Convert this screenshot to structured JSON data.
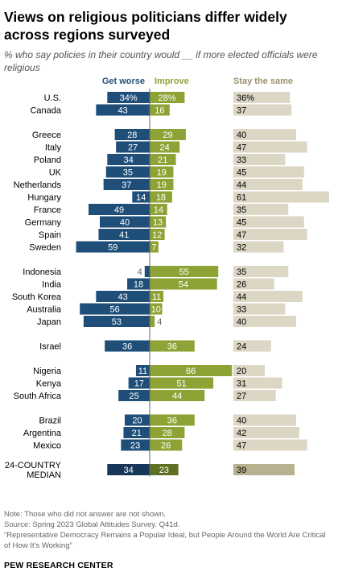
{
  "title": "Views on religious politicians differ widely across regions surveyed",
  "subtitle": "% who say policies in their country would __ if more elected officials were religious",
  "notes": [
    "Note: Those who did not answer are not shown.",
    "Source: Spring 2023 Global Attitudes Survey. Q41d.",
    "“Representative Democracy Remains a Popular Ideal, but People Around the World Are Critical of How It’s Working”"
  ],
  "source_org": "PEW RESEARCH CENTER",
  "colors": {
    "worse": "#1f4e79",
    "improve": "#8ea336",
    "same": "#dcd6c5",
    "worse_median": "#17375a",
    "improve_median": "#5f6f24",
    "same_median": "#b8b18f",
    "header_worse": "#1f4e79",
    "header_improve": "#8ea336",
    "header_same": "#9a9170"
  },
  "chart_data": {
    "type": "bar",
    "orientation": "horizontal-diverging",
    "series": [
      {
        "name": "Get worse",
        "key": "worse"
      },
      {
        "name": "Improve",
        "key": "improve"
      },
      {
        "name": "Stay the same",
        "key": "same"
      }
    ],
    "groups": [
      {
        "rows": [
          {
            "label": "U.S.",
            "worse": 34,
            "improve": 28,
            "same": 36,
            "pct": true
          },
          {
            "label": "Canada",
            "worse": 43,
            "improve": 16,
            "same": 37
          }
        ]
      },
      {
        "rows": [
          {
            "label": "Greece",
            "worse": 28,
            "improve": 29,
            "same": 40
          },
          {
            "label": "Italy",
            "worse": 27,
            "improve": 24,
            "same": 47
          },
          {
            "label": "Poland",
            "worse": 34,
            "improve": 21,
            "same": 33
          },
          {
            "label": "UK",
            "worse": 35,
            "improve": 19,
            "same": 45
          },
          {
            "label": "Netherlands",
            "worse": 37,
            "improve": 19,
            "same": 44
          },
          {
            "label": "Hungary",
            "worse": 14,
            "improve": 18,
            "same": 61
          },
          {
            "label": "France",
            "worse": 49,
            "improve": 14,
            "same": 35
          },
          {
            "label": "Germany",
            "worse": 40,
            "improve": 13,
            "same": 45
          },
          {
            "label": "Spain",
            "worse": 41,
            "improve": 12,
            "same": 47
          },
          {
            "label": "Sweden",
            "worse": 59,
            "improve": 7,
            "same": 32
          }
        ]
      },
      {
        "rows": [
          {
            "label": "Indonesia",
            "worse": 4,
            "improve": 55,
            "same": 35
          },
          {
            "label": "India",
            "worse": 18,
            "improve": 54,
            "same": 26
          },
          {
            "label": "South Korea",
            "worse": 43,
            "improve": 11,
            "same": 44
          },
          {
            "label": "Australia",
            "worse": 56,
            "improve": 10,
            "same": 33
          },
          {
            "label": "Japan",
            "worse": 53,
            "improve": 4,
            "same": 40
          }
        ]
      },
      {
        "rows": [
          {
            "label": "Israel",
            "worse": 36,
            "improve": 36,
            "same": 24
          }
        ]
      },
      {
        "rows": [
          {
            "label": "Nigeria",
            "worse": 11,
            "improve": 66,
            "same": 20
          },
          {
            "label": "Kenya",
            "worse": 17,
            "improve": 51,
            "same": 31
          },
          {
            "label": "South Africa",
            "worse": 25,
            "improve": 44,
            "same": 27
          }
        ]
      },
      {
        "rows": [
          {
            "label": "Brazil",
            "worse": 20,
            "improve": 36,
            "same": 40
          },
          {
            "label": "Argentina",
            "worse": 21,
            "improve": 28,
            "same": 42
          },
          {
            "label": "Mexico",
            "worse": 23,
            "improve": 26,
            "same": 47
          }
        ]
      },
      {
        "rows": [
          {
            "label": "24-COUNTRY MEDIAN",
            "label_lines": [
              "24-COUNTRY",
              "MEDIAN"
            ],
            "worse": 34,
            "improve": 23,
            "same": 39,
            "median": true
          }
        ]
      }
    ]
  }
}
